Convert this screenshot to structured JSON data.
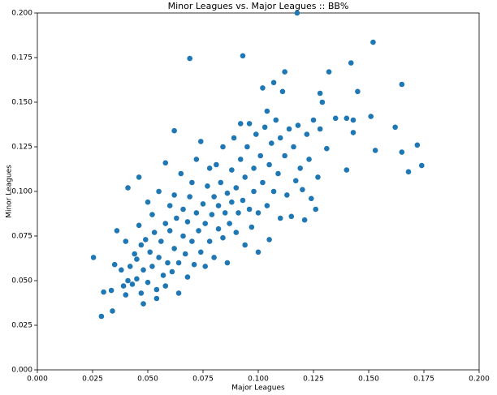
{
  "chart_data": {
    "type": "scatter",
    "title": "Minor Leagues vs. Major Leagues :: BB%",
    "xlabel": "Major Leagues",
    "ylabel": "Minor Leagues",
    "color": "#1f77b4",
    "xlim": [
      0,
      0.2
    ],
    "ylim": [
      0,
      0.2
    ],
    "xticks": [
      {
        "value": 0,
        "label": "0.000"
      },
      {
        "value": 0.025,
        "label": "0.025"
      },
      {
        "value": 0.05,
        "label": "0.050"
      },
      {
        "value": 0.075,
        "label": "0.075"
      },
      {
        "value": 0.1,
        "label": "0.100"
      },
      {
        "value": 0.125,
        "label": "0.125"
      },
      {
        "value": 0.15,
        "label": "0.150"
      },
      {
        "value": 0.175,
        "label": "0.175"
      },
      {
        "value": 0.2,
        "label": "0.200"
      }
    ],
    "yticks": [
      {
        "value": 0,
        "label": "0.000"
      },
      {
        "value": 0.025,
        "label": "0.025"
      },
      {
        "value": 0.05,
        "label": "0.050"
      },
      {
        "value": 0.075,
        "label": "0.075"
      },
      {
        "value": 0.1,
        "label": "0.100"
      },
      {
        "value": 0.125,
        "label": "0.125"
      },
      {
        "value": 0.15,
        "label": "0.150"
      },
      {
        "value": 0.175,
        "label": "0.175"
      },
      {
        "value": 0.2,
        "label": "0.200"
      }
    ],
    "x": [
      0.1176,
      0.069,
      0.093,
      0.152,
      0.142,
      0.165,
      0.132,
      0.0254,
      0.029,
      0.03,
      0.0335,
      0.034,
      0.174,
      0.172,
      0.168,
      0.165,
      0.162,
      0.153,
      0.151,
      0.14,
      0.145,
      0.143,
      0.143,
      0.14,
      0.135,
      0.131,
      0.129,
      0.128,
      0.041,
      0.062,
      0.058,
      0.046,
      0.035,
      0.036,
      0.038,
      0.039,
      0.04,
      0.04,
      0.041,
      0.042,
      0.043,
      0.044,
      0.045,
      0.045,
      0.046,
      0.047,
      0.047,
      0.048,
      0.048,
      0.049,
      0.05,
      0.05,
      0.051,
      0.052,
      0.052,
      0.053,
      0.054,
      0.054,
      0.055,
      0.055,
      0.056,
      0.057,
      0.058,
      0.058,
      0.059,
      0.06,
      0.06,
      0.061,
      0.062,
      0.062,
      0.063,
      0.064,
      0.064,
      0.065,
      0.066,
      0.066,
      0.067,
      0.068,
      0.068,
      0.069,
      0.07,
      0.07,
      0.071,
      0.072,
      0.072,
      0.073,
      0.074,
      0.074,
      0.075,
      0.076,
      0.076,
      0.077,
      0.078,
      0.078,
      0.079,
      0.08,
      0.08,
      0.081,
      0.082,
      0.082,
      0.083,
      0.084,
      0.084,
      0.085,
      0.086,
      0.086,
      0.087,
      0.088,
      0.088,
      0.089,
      0.09,
      0.09,
      0.091,
      0.092,
      0.092,
      0.093,
      0.094,
      0.094,
      0.095,
      0.096,
      0.096,
      0.097,
      0.098,
      0.098,
      0.099,
      0.1,
      0.1,
      0.101,
      0.102,
      0.102,
      0.103,
      0.104,
      0.104,
      0.105,
      0.105,
      0.106,
      0.107,
      0.107,
      0.108,
      0.109,
      0.11,
      0.11,
      0.111,
      0.112,
      0.112,
      0.113,
      0.114,
      0.115,
      0.116,
      0.117,
      0.118,
      0.119,
      0.12,
      0.121,
      0.122,
      0.123,
      0.124,
      0.125,
      0.126,
      0.127,
      0.128
    ],
    "y": [
      0.2,
      0.1745,
      0.176,
      0.1836,
      0.172,
      0.16,
      0.167,
      0.063,
      0.03,
      0.0436,
      0.0445,
      0.033,
      0.1145,
      0.126,
      0.111,
      0.122,
      0.136,
      0.123,
      0.142,
      0.112,
      0.156,
      0.14,
      0.133,
      0.141,
      0.141,
      0.124,
      0.15,
      0.155,
      0.102,
      0.134,
      0.116,
      0.108,
      0.059,
      0.078,
      0.056,
      0.047,
      0.072,
      0.042,
      0.05,
      0.058,
      0.048,
      0.065,
      0.051,
      0.062,
      0.081,
      0.043,
      0.07,
      0.037,
      0.056,
      0.073,
      0.049,
      0.094,
      0.066,
      0.058,
      0.087,
      0.077,
      0.045,
      0.04,
      0.063,
      0.1,
      0.072,
      0.053,
      0.082,
      0.047,
      0.06,
      0.078,
      0.092,
      0.055,
      0.068,
      0.098,
      0.085,
      0.043,
      0.06,
      0.11,
      0.075,
      0.09,
      0.065,
      0.083,
      0.052,
      0.097,
      0.072,
      0.105,
      0.059,
      0.088,
      0.118,
      0.078,
      0.066,
      0.128,
      0.093,
      0.082,
      0.058,
      0.103,
      0.072,
      0.113,
      0.087,
      0.097,
      0.063,
      0.115,
      0.079,
      0.092,
      0.105,
      0.074,
      0.125,
      0.088,
      0.099,
      0.06,
      0.082,
      0.112,
      0.094,
      0.13,
      0.077,
      0.102,
      0.088,
      0.118,
      0.138,
      0.095,
      0.07,
      0.108,
      0.125,
      0.09,
      0.138,
      0.08,
      0.113,
      0.1,
      0.132,
      0.088,
      0.066,
      0.12,
      0.105,
      0.158,
      0.136,
      0.092,
      0.145,
      0.115,
      0.073,
      0.127,
      0.1,
      0.161,
      0.14,
      0.11,
      0.085,
      0.13,
      0.156,
      0.12,
      0.167,
      0.098,
      0.135,
      0.086,
      0.125,
      0.106,
      0.137,
      0.113,
      0.101,
      0.084,
      0.132,
      0.118,
      0.096,
      0.14,
      0.09,
      0.108,
      0.135
    ]
  }
}
